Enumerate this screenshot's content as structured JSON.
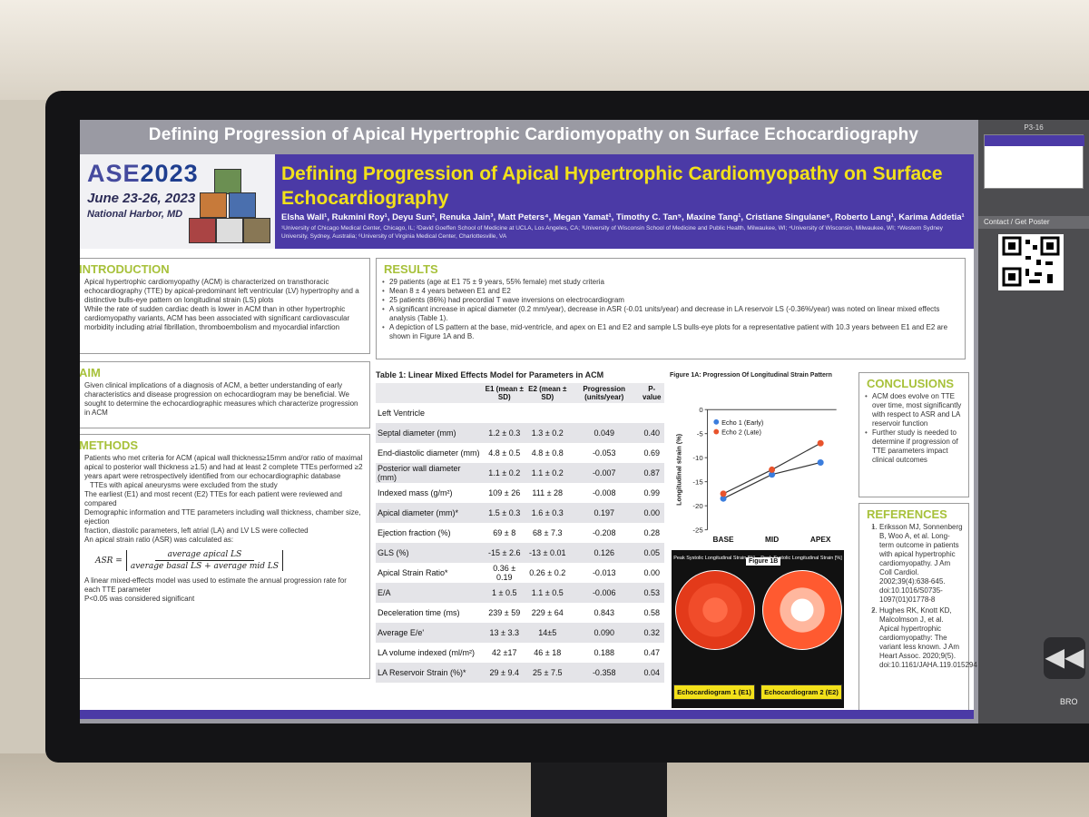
{
  "screen_title": "Defining Progression of Apical Hypertrophic Cardiomyopathy on Surface Echocardiography",
  "logo": {
    "brand_a": "ASE",
    "brand_b": "2023",
    "dates": "June 23-26, 2023",
    "place": "National Harbor, MD"
  },
  "poster": {
    "title": "Defining Progression of Apical Hypertrophic Cardiomyopathy on Surface Echocardiography",
    "authors": "Elsha Wall¹, Rukmini Roy¹, Deyu Sun², Renuka Jain³, Matt Peters⁴, Megan Yamat¹, Timothy C. Tan⁵, Maxine Tang¹, Cristiane Singulane⁶, Roberto Lang¹, Karima Addetia¹",
    "affiliations": "¹University of Chicago Medical Center, Chicago, IL; ²David Goeffen School of Medicine at UCLA, Los Angeles, CA; ³University of Wisconsin School of Medicine and Public Health, Milwaukee, WI; ⁴University of Wisconsin, Milwaukee, WI; ⁵Western Sydney University, Sydney, Australia; ⁶University of Virginia Medical Center, Charlottesville, VA"
  },
  "introduction": {
    "heading": "INTRODUCTION",
    "items": [
      "Apical hypertrophic cardiomyopathy (ACM) is characterized on transthoracic echocardiography (TTE) by apical-predominant left ventricular (LV) hypertrophy and a distinctive bulls-eye pattern on longitudinal strain (LS) plots",
      "While the rate of sudden cardiac death is lower in ACM than in other hypertrophic cardiomyopathy variants, ACM has been associated with significant cardiovascular morbidity including atrial fibrillation, thromboembolism and myocardial infarction"
    ]
  },
  "aim": {
    "heading": "AIM",
    "items": [
      "Given clinical implications of a diagnosis of ACM, a better understanding of early characteristics and disease progression on echocardiogram may be beneficial. We sought to determine the echocardiographic measures which characterize progression in ACM"
    ]
  },
  "methods": {
    "heading": "METHODS",
    "items": [
      "Patients who met criteria for ACM (apical wall thickness≥15mm and/or ratio of maximal apical to posterior wall thickness ≥1.5) and had at least 2 complete TTEs performed ≥2 years apart were retrospectively identified from our echocardiographic database",
      "TTEs with apical aneurysms were excluded from the study",
      "The earliest (E1) and most recent (E2) TTEs for each patient were reviewed and compared",
      "Demographic information and TTE parameters including wall thickness, chamber size, ejection",
      "fraction, diastolic parameters, left atrial (LA) and LV LS were collected",
      "An apical strain ratio (ASR) was calculated as:"
    ],
    "formula": {
      "lhs": "ASR =",
      "num": "average apical LS",
      "den": "average basal LS + average mid LS"
    },
    "items_after": [
      "A linear mixed-effects model was used to estimate the annual progression rate for each TTE parameter",
      "P<0.05 was considered significant"
    ]
  },
  "results": {
    "heading": "RESULTS",
    "items": [
      "29 patients (age at E1 75 ± 9 years, 55% female) met study criteria",
      "Mean 8 ± 4 years between E1 and E2",
      "25 patients (86%) had precordial T wave inversions on electrocardiogram",
      "A significant increase in apical diameter (0.2 mm/year), decrease in ASR (-0.01 units/year) and decrease in LA reservoir LS (-0.36%/year) was noted on linear mixed effects analysis (Table 1).",
      "A depiction of LS pattern at the base, mid-ventricle, and apex on E1 and E2 and sample LS bulls-eye plots for a representative patient with 10.3 years between E1 and E2 are shown in Figure 1A and B."
    ]
  },
  "table1": {
    "caption": "Table 1: Linear Mixed Effects Model for Parameters in ACM",
    "headers": [
      "",
      "E1 (mean ± SD)",
      "E2 (mean ± SD)",
      "Progression (units/year)",
      "P-value"
    ],
    "section_label": "Left Ventricle",
    "rows": [
      [
        "Septal diameter (mm)",
        "1.2 ± 0.3",
        "1.3 ± 0.2",
        "0.049",
        "0.40"
      ],
      [
        "End-diastolic diameter (mm)",
        "4.8 ± 0.5",
        "4.8 ± 0.8",
        "-0.053",
        "0.69"
      ],
      [
        "Posterior wall diameter (mm)",
        "1.1 ± 0.2",
        "1.1 ± 0.2",
        "-0.007",
        "0.87"
      ],
      [
        "Indexed mass (g/m²)",
        "109 ± 26",
        "111 ± 28",
        "-0.008",
        "0.99"
      ],
      [
        "Apical diameter (mm)*",
        "1.5 ± 0.3",
        "1.6 ± 0.3",
        "0.197",
        "0.00"
      ],
      [
        "Ejection fraction (%)",
        "69 ± 8",
        "68 ± 7.3",
        "-0.208",
        "0.28"
      ],
      [
        "GLS (%)",
        "-15 ± 2.6",
        "-13 ± 0.01",
        "0.126",
        "0.05"
      ],
      [
        "Apical Strain Ratio*",
        "0.36 ± 0.19",
        "0.26 ± 0.2",
        "-0.013",
        "0.00"
      ],
      [
        "E/A",
        "1 ± 0.5",
        "1.1 ± 0.5",
        "-0.006",
        "0.53"
      ],
      [
        "Deceleration time (ms)",
        "239 ± 59",
        "229 ± 64",
        "0.843",
        "0.58"
      ],
      [
        "Average E/e'",
        "13 ± 3.3",
        "14±5",
        "0.090",
        "0.32"
      ],
      [
        "LA volume indexed (ml/m²)",
        "42 ±17",
        "46 ± 18",
        "0.188",
        "0.47"
      ],
      [
        "LA Reservoir Strain (%)*",
        "29 ± 9.4",
        "25 ± 7.5",
        "-0.358",
        "0.04"
      ]
    ]
  },
  "chart_data": {
    "type": "line",
    "title": "Figure 1A: Progression Of Longitudinal Strain Pattern",
    "categories": [
      "BASE",
      "MID",
      "APEX"
    ],
    "series": [
      {
        "name": "Echo 1 (Early)",
        "values": [
          -18.5,
          -13.5,
          -11
        ],
        "color": "#3b7ddd"
      },
      {
        "name": "Echo 2 (Late)",
        "values": [
          -17.5,
          -12.5,
          -7
        ],
        "color": "#e8532c"
      }
    ],
    "ylabel": "Longitudinal strain (%)",
    "ylim": [
      -25,
      0
    ],
    "yticks": [
      "0",
      "-5",
      "-10",
      "-15",
      "-20",
      "-25"
    ],
    "legend": "top-left"
  },
  "fig1b": {
    "tag": "Figure 1B",
    "peak_label": "Peak Systolic Longitudinal Strain [%]",
    "echo1": "Echocardiogram 1 (E1)",
    "echo2": "Echocardiogram 2 (E2)"
  },
  "conclusions": {
    "heading": "CONCLUSIONS",
    "items": [
      "ACM does evolve on TTE over time, most significantly with respect to ASR and LA reservoir function",
      "Further study is needed to determine if progression of TTE parameters impact clinical outcomes"
    ]
  },
  "references": {
    "heading": "REFERENCES",
    "items": [
      "Eriksson MJ, Sonnenberg B, Woo A, et al. Long-term outcome in patients with apical hypertrophic cardiomyopathy. J Am Coll Cardiol. 2002;39(4):638-645. doi:10.1016/S0735-1097(01)01778-8",
      "Hughes RK, Knott KD, Malcolmson J, et al. Apical hypertrophic cardiomyopathy: The variant less known. J Am Heart Assoc. 2020;9(5). doi:10.1161/JAHA.119.015294"
    ]
  },
  "side_panel": {
    "poster_id": "P3-16",
    "contact": "Contact / Get Poster",
    "rewind": "◀◀",
    "browse": "BRO"
  }
}
